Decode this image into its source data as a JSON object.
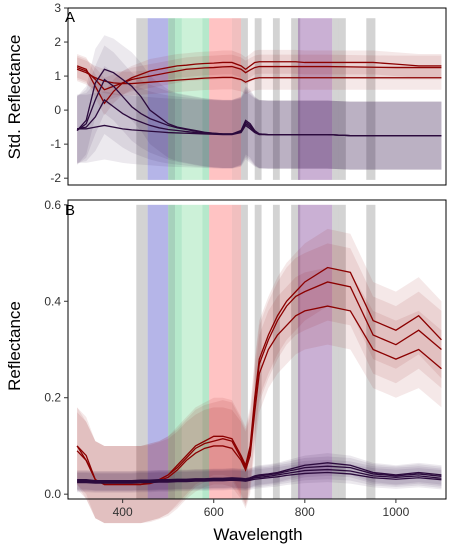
{
  "chart_data": [
    {
      "panel_label": "A",
      "type": "line",
      "ylabel": "Std. Reflectance",
      "xlim": [
        280,
        1110
      ],
      "ylim": [
        -2.2,
        3.0
      ],
      "yticks": [
        -2,
        -1,
        0,
        1,
        2,
        3
      ],
      "grid": false,
      "x": [
        300,
        320,
        340,
        360,
        380,
        400,
        420,
        440,
        460,
        480,
        500,
        520,
        540,
        560,
        580,
        600,
        620,
        640,
        660,
        670,
        680,
        690,
        700,
        720,
        740,
        760,
        780,
        800,
        850,
        900,
        950,
        1000,
        1050,
        1100
      ],
      "series": [
        {
          "color": "#8b0000",
          "band": 0.35,
          "values": [
            1.3,
            1.2,
            0.7,
            0.2,
            0.55,
            0.8,
            0.95,
            1.05,
            1.15,
            1.2,
            1.25,
            1.3,
            1.32,
            1.35,
            1.37,
            1.38,
            1.4,
            1.4,
            1.3,
            1.2,
            1.3,
            1.4,
            1.42,
            1.42,
            1.42,
            1.42,
            1.42,
            1.4,
            1.4,
            1.4,
            1.4,
            1.35,
            1.3,
            1.3
          ]
        },
        {
          "color": "#8b0000",
          "band": 0.35,
          "values": [
            1.25,
            1.15,
            0.9,
            0.6,
            0.7,
            0.8,
            0.9,
            0.95,
            1.0,
            1.05,
            1.1,
            1.15,
            1.2,
            1.22,
            1.24,
            1.25,
            1.27,
            1.28,
            1.2,
            1.1,
            1.18,
            1.25,
            1.28,
            1.28,
            1.28,
            1.28,
            1.28,
            1.28,
            1.28,
            1.27,
            1.26,
            1.25,
            1.25,
            1.25
          ]
        },
        {
          "color": "#8b0000",
          "band": 0.35,
          "values": [
            1.2,
            1.1,
            0.95,
            0.85,
            0.8,
            0.78,
            0.78,
            0.8,
            0.82,
            0.84,
            0.86,
            0.88,
            0.9,
            0.92,
            0.94,
            0.95,
            0.96,
            0.96,
            0.9,
            0.82,
            0.88,
            0.93,
            0.95,
            0.95,
            0.95,
            0.95,
            0.95,
            0.95,
            0.95,
            0.95,
            0.95,
            0.95,
            0.95,
            0.95
          ]
        },
        {
          "color": "#2b0a3d",
          "band": 1.0,
          "values": [
            -0.6,
            -0.3,
            0.8,
            1.2,
            1.1,
            0.9,
            0.7,
            0.4,
            0.0,
            -0.2,
            -0.4,
            -0.5,
            -0.55,
            -0.6,
            -0.65,
            -0.68,
            -0.7,
            -0.7,
            -0.6,
            -0.3,
            -0.4,
            -0.6,
            -0.7,
            -0.72,
            -0.72,
            -0.72,
            -0.72,
            -0.72,
            -0.72,
            -0.75,
            -0.75,
            -0.75,
            -0.75,
            -0.75
          ]
        },
        {
          "color": "#2b0a3d",
          "band": 1.0,
          "values": [
            -0.6,
            -0.4,
            0.3,
            0.9,
            0.7,
            0.4,
            0.1,
            -0.1,
            -0.25,
            -0.35,
            -0.45,
            -0.52,
            -0.57,
            -0.62,
            -0.66,
            -0.68,
            -0.7,
            -0.7,
            -0.62,
            -0.35,
            -0.45,
            -0.62,
            -0.7,
            -0.72,
            -0.72,
            -0.72,
            -0.72,
            -0.72,
            -0.72,
            -0.75,
            -0.75,
            -0.75,
            -0.75,
            -0.75
          ]
        },
        {
          "color": "#2b0a3d",
          "band": 1.0,
          "values": [
            -0.55,
            -0.5,
            -0.2,
            0.3,
            0.1,
            -0.1,
            -0.25,
            -0.35,
            -0.45,
            -0.52,
            -0.57,
            -0.6,
            -0.63,
            -0.66,
            -0.68,
            -0.7,
            -0.71,
            -0.71,
            -0.64,
            -0.4,
            -0.5,
            -0.64,
            -0.71,
            -0.72,
            -0.72,
            -0.72,
            -0.72,
            -0.72,
            -0.72,
            -0.75,
            -0.75,
            -0.75,
            -0.75,
            -0.75
          ]
        },
        {
          "color": "#2b0a3d",
          "band": 1.0,
          "values": [
            -0.55,
            -0.55,
            -0.5,
            -0.45,
            -0.5,
            -0.55,
            -0.58,
            -0.6,
            -0.62,
            -0.64,
            -0.66,
            -0.67,
            -0.68,
            -0.69,
            -0.7,
            -0.71,
            -0.72,
            -0.72,
            -0.66,
            -0.45,
            -0.55,
            -0.66,
            -0.72,
            -0.72,
            -0.72,
            -0.72,
            -0.72,
            -0.72,
            -0.72,
            -0.75,
            -0.75,
            -0.75,
            -0.75,
            -0.75
          ]
        }
      ]
    },
    {
      "panel_label": "B",
      "type": "line",
      "xlabel": "Wavelength",
      "ylabel": "Reflectance",
      "xlim": [
        280,
        1110
      ],
      "ylim": [
        -0.01,
        0.61
      ],
      "yticks": [
        0.0,
        0.2,
        0.4,
        0.6
      ],
      "ytick_labels": [
        "0.0",
        "0.2",
        "0.4",
        "0.6"
      ],
      "xticks": [
        400,
        600,
        800,
        1000
      ],
      "grid": false,
      "x": [
        300,
        320,
        340,
        360,
        380,
        400,
        420,
        440,
        460,
        480,
        500,
        520,
        540,
        560,
        580,
        600,
        620,
        640,
        660,
        670,
        680,
        690,
        700,
        720,
        740,
        760,
        780,
        800,
        850,
        900,
        950,
        1000,
        1050,
        1100
      ],
      "series": [
        {
          "color": "#8b0000",
          "band": 0.08,
          "values": [
            0.1,
            0.08,
            0.03,
            0.02,
            0.02,
            0.02,
            0.02,
            0.02,
            0.025,
            0.03,
            0.04,
            0.06,
            0.08,
            0.1,
            0.11,
            0.12,
            0.12,
            0.115,
            0.08,
            0.06,
            0.1,
            0.2,
            0.28,
            0.33,
            0.37,
            0.4,
            0.42,
            0.44,
            0.47,
            0.46,
            0.36,
            0.34,
            0.37,
            0.32
          ]
        },
        {
          "color": "#8b0000",
          "band": 0.08,
          "values": [
            0.1,
            0.07,
            0.03,
            0.02,
            0.02,
            0.02,
            0.02,
            0.02,
            0.025,
            0.03,
            0.04,
            0.055,
            0.075,
            0.095,
            0.105,
            0.11,
            0.115,
            0.11,
            0.075,
            0.055,
            0.09,
            0.19,
            0.27,
            0.32,
            0.36,
            0.39,
            0.41,
            0.42,
            0.44,
            0.43,
            0.33,
            0.31,
            0.34,
            0.3
          ]
        },
        {
          "color": "#8b0000",
          "band": 0.08,
          "values": [
            0.09,
            0.07,
            0.03,
            0.02,
            0.02,
            0.02,
            0.02,
            0.02,
            0.022,
            0.028,
            0.035,
            0.05,
            0.07,
            0.085,
            0.095,
            0.1,
            0.1,
            0.095,
            0.07,
            0.05,
            0.08,
            0.17,
            0.25,
            0.3,
            0.33,
            0.35,
            0.37,
            0.38,
            0.39,
            0.38,
            0.3,
            0.28,
            0.3,
            0.26
          ]
        },
        {
          "color": "#2b0a3d",
          "band": 0.02,
          "values": [
            0.03,
            0.03,
            0.028,
            0.028,
            0.028,
            0.028,
            0.028,
            0.029,
            0.029,
            0.03,
            0.03,
            0.031,
            0.031,
            0.032,
            0.032,
            0.033,
            0.033,
            0.034,
            0.033,
            0.032,
            0.034,
            0.038,
            0.04,
            0.042,
            0.045,
            0.05,
            0.055,
            0.06,
            0.065,
            0.06,
            0.045,
            0.04,
            0.045,
            0.04
          ]
        },
        {
          "color": "#2b0a3d",
          "band": 0.02,
          "values": [
            0.028,
            0.028,
            0.027,
            0.027,
            0.027,
            0.027,
            0.027,
            0.028,
            0.028,
            0.029,
            0.029,
            0.03,
            0.03,
            0.031,
            0.031,
            0.032,
            0.032,
            0.033,
            0.032,
            0.031,
            0.033,
            0.036,
            0.038,
            0.04,
            0.043,
            0.047,
            0.051,
            0.055,
            0.058,
            0.055,
            0.042,
            0.038,
            0.042,
            0.037
          ]
        },
        {
          "color": "#2b0a3d",
          "band": 0.02,
          "values": [
            0.026,
            0.026,
            0.025,
            0.025,
            0.025,
            0.025,
            0.025,
            0.026,
            0.026,
            0.027,
            0.027,
            0.028,
            0.028,
            0.029,
            0.029,
            0.03,
            0.03,
            0.031,
            0.03,
            0.029,
            0.031,
            0.034,
            0.035,
            0.037,
            0.04,
            0.043,
            0.046,
            0.049,
            0.051,
            0.048,
            0.038,
            0.035,
            0.038,
            0.033
          ]
        },
        {
          "color": "#2b0a3d",
          "band": 0.02,
          "values": [
            0.024,
            0.024,
            0.023,
            0.023,
            0.023,
            0.023,
            0.023,
            0.024,
            0.024,
            0.025,
            0.025,
            0.026,
            0.026,
            0.027,
            0.027,
            0.028,
            0.028,
            0.029,
            0.028,
            0.027,
            0.029,
            0.031,
            0.032,
            0.034,
            0.036,
            0.039,
            0.041,
            0.043,
            0.045,
            0.042,
            0.034,
            0.031,
            0.034,
            0.03
          ]
        }
      ]
    }
  ],
  "spectral_bands": [
    {
      "start": 430,
      "end": 455,
      "color": "#9e9e9e"
    },
    {
      "start": 455,
      "end": 500,
      "color": "#5c5ccc"
    },
    {
      "start": 500,
      "end": 515,
      "color": "#3a9a6a"
    },
    {
      "start": 515,
      "end": 530,
      "color": "#5ccc8c"
    },
    {
      "start": 530,
      "end": 575,
      "color": "#8ee0a8"
    },
    {
      "start": 575,
      "end": 590,
      "color": "#5ccc8c"
    },
    {
      "start": 590,
      "end": 640,
      "color": "#ff7a7a"
    },
    {
      "start": 640,
      "end": 660,
      "color": "#e07070"
    },
    {
      "start": 660,
      "end": 675,
      "color": "#9e9e9e"
    },
    {
      "start": 690,
      "end": 705,
      "color": "#9e9e9e"
    },
    {
      "start": 730,
      "end": 745,
      "color": "#9e9e9e"
    },
    {
      "start": 770,
      "end": 790,
      "color": "#9e9e9e"
    },
    {
      "start": 785,
      "end": 860,
      "color": "#8a4fa0"
    },
    {
      "start": 860,
      "end": 875,
      "color": "#9e9e9e"
    },
    {
      "start": 875,
      "end": 890,
      "color": "#9e9e9e"
    },
    {
      "start": 935,
      "end": 955,
      "color": "#9e9e9e"
    }
  ]
}
